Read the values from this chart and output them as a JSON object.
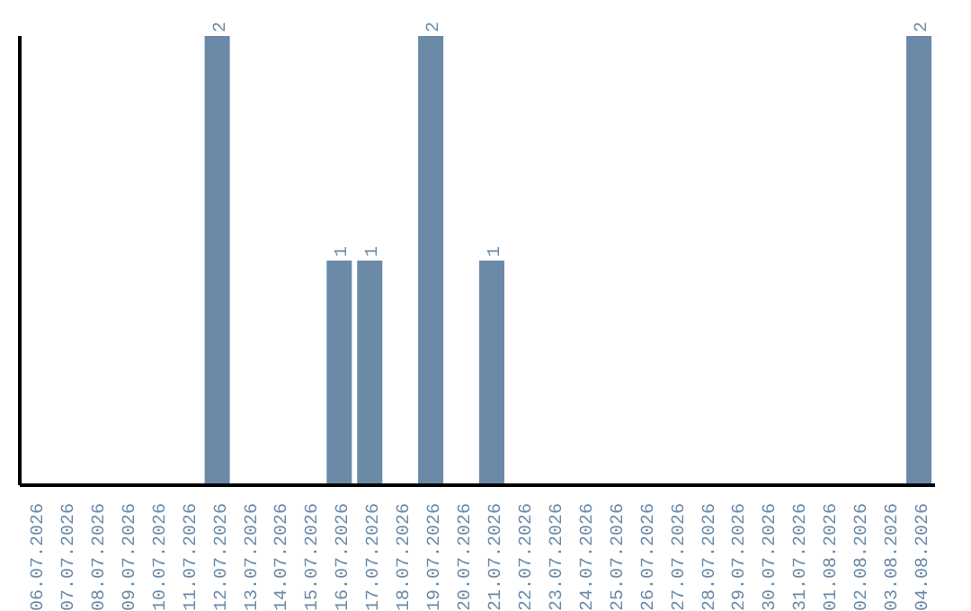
{
  "chart_data": {
    "type": "bar",
    "categories": [
      "06.07.2026",
      "07.07.2026",
      "08.07.2026",
      "09.07.2026",
      "10.07.2026",
      "11.07.2026",
      "12.07.2026",
      "13.07.2026",
      "14.07.2026",
      "15.07.2026",
      "16.07.2026",
      "17.07.2026",
      "18.07.2026",
      "19.07.2026",
      "20.07.2026",
      "21.07.2026",
      "22.07.2026",
      "23.07.2026",
      "24.07.2026",
      "25.07.2026",
      "26.07.2026",
      "27.07.2026",
      "28.07.2026",
      "29.07.2026",
      "30.07.2026",
      "31.07.2026",
      "01.08.2026",
      "02.08.2026",
      "03.08.2026",
      "04.08.2026"
    ],
    "values": [
      0,
      0,
      0,
      0,
      0,
      0,
      2,
      0,
      0,
      0,
      1,
      1,
      0,
      2,
      0,
      1,
      0,
      0,
      0,
      0,
      0,
      0,
      0,
      0,
      0,
      0,
      0,
      0,
      0,
      2
    ],
    "value_labels": [
      null,
      null,
      null,
      null,
      null,
      null,
      "2",
      null,
      null,
      null,
      "1",
      "1",
      null,
      "2",
      null,
      "1",
      null,
      null,
      null,
      null,
      null,
      null,
      null,
      null,
      null,
      null,
      null,
      null,
      null,
      "2"
    ],
    "color": "#6a8aa8",
    "ylim": [
      0,
      2
    ],
    "tick_labels": "x",
    "grid": false,
    "legend": false
  }
}
